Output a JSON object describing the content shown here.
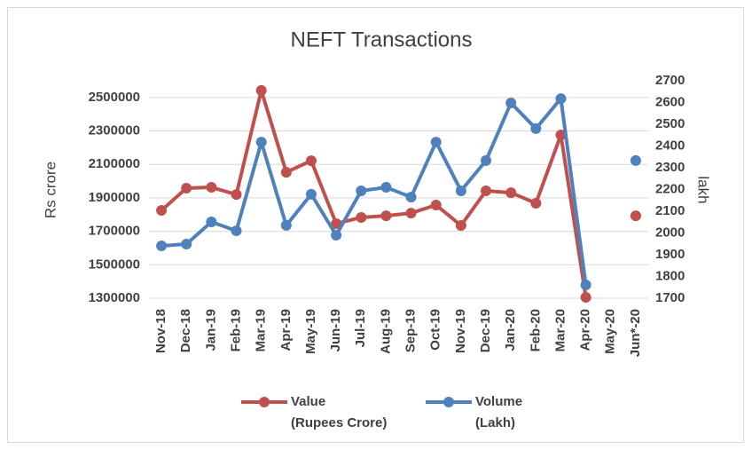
{
  "chart_data": {
    "type": "line",
    "title": "NEFT Transactions",
    "ylabel": "Rs crore",
    "y2label": "lakh",
    "categories": [
      "Nov-18",
      "Dec-18",
      "Jan-19",
      "Feb-19",
      "Mar-19",
      "Apr-19",
      "May-19",
      "Jun-19",
      "Jul-19",
      "Aug-19",
      "Sep-19",
      "Oct-19",
      "Nov-19",
      "Dec-19",
      "Jan-20",
      "Feb-20",
      "Mar-20",
      "Apr-20",
      "May-20",
      "Jun*-20"
    ],
    "series": [
      {
        "name": "Value\n(Rupees Crore)",
        "color": "#c0504d",
        "axis": "y",
        "values": [
          1825000,
          1958000,
          1963000,
          1920000,
          2542000,
          2053000,
          2122000,
          1746000,
          1783000,
          1793000,
          1809000,
          1857000,
          1735000,
          1942000,
          1931000,
          1868000,
          2276000,
          1305000,
          null,
          1793000
        ]
      },
      {
        "name": "Volume\n(Lakh)",
        "color": "#4f81bd",
        "axis": "y2",
        "values": [
          1941,
          1949,
          2051,
          2010,
          2418,
          2035,
          2178,
          1990,
          2194,
          2210,
          2165,
          2418,
          2194,
          2333,
          2598,
          2480,
          2618,
          1761,
          null,
          2333
        ]
      }
    ],
    "ylim": [
      1300000,
      2600000
    ],
    "yticks": [
      1300000,
      1500000,
      1700000,
      1900000,
      2100000,
      2300000,
      2500000
    ],
    "y2lim": [
      1700,
      2700
    ],
    "y2ticks": [
      1700,
      1800,
      1900,
      2000,
      2100,
      2200,
      2300,
      2400,
      2500,
      2600,
      2700
    ],
    "grid": true,
    "legend": "bottom"
  }
}
